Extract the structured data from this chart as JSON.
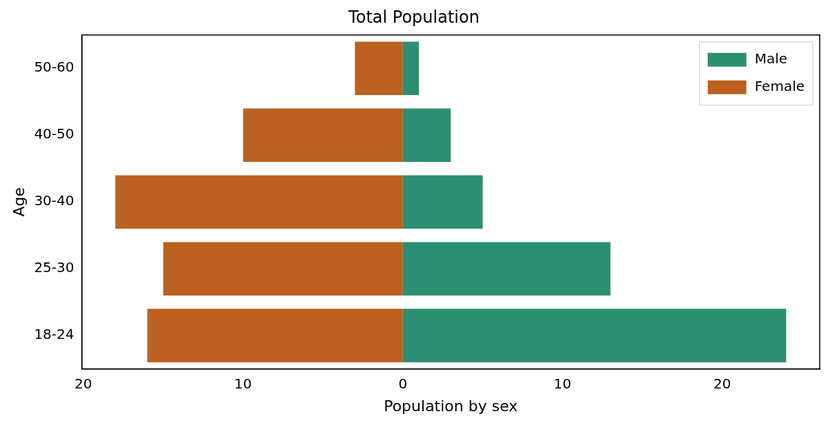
{
  "chart_data": {
    "type": "bar",
    "title": "Total Population",
    "xlabel": "Population by sex",
    "ylabel": "Age",
    "orientation": "horizontal",
    "stacked": true,
    "categories": [
      "50-60",
      "40-50",
      "30-40",
      "25-30",
      "18-24"
    ],
    "series": [
      {
        "name": "Male",
        "color": "#2c8f72",
        "values": [
          1,
          3,
          5,
          13,
          24
        ]
      },
      {
        "name": "Female",
        "color": "#bc611f",
        "values": [
          -3,
          -10,
          -18,
          -15,
          -16
        ]
      }
    ],
    "xlim": [
      -20.1,
      26.1
    ],
    "xticks": [
      {
        "value": -20,
        "label": "20"
      },
      {
        "value": -10,
        "label": "10"
      },
      0,
      10,
      20
    ],
    "grid": false,
    "legend": "top right"
  }
}
